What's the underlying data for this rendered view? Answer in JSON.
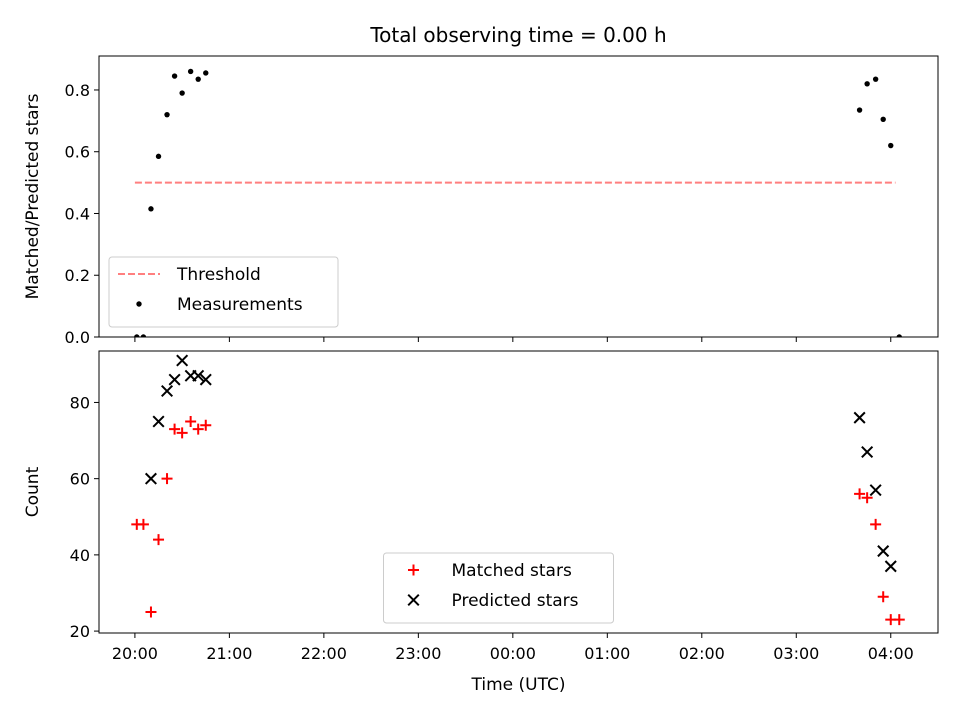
{
  "chart_data": [
    {
      "type": "scatter",
      "title": "Total observing time = 0.00 h",
      "ylabel": "Matched/Predicted stars",
      "xlabel": "",
      "ylim": [
        0,
        0.91
      ],
      "xlim_hours": [
        19.62,
        28.5
      ],
      "yticks": [
        0.0,
        0.2,
        0.4,
        0.6,
        0.8
      ],
      "ytick_labels": [
        "0.0",
        "0.2",
        "0.4",
        "0.6",
        "0.8"
      ],
      "legend_position": "lower-left",
      "series": [
        {
          "name": "Threshold",
          "kind": "dashed-line",
          "color": "#ff7f7f",
          "x_hours": [
            20.0,
            28.05
          ],
          "y": [
            0.5,
            0.5
          ]
        },
        {
          "name": "Measurements",
          "kind": "dot",
          "color": "#000000",
          "x_hours": [
            20.02,
            20.09,
            20.17,
            20.25,
            20.34,
            20.42,
            20.5,
            20.59,
            20.67,
            20.75,
            27.67,
            27.75,
            27.84,
            27.92,
            28.0,
            28.09
          ],
          "y": [
            0.0,
            0.0,
            0.415,
            0.585,
            0.72,
            0.845,
            0.79,
            0.86,
            0.835,
            0.855,
            0.735,
            0.82,
            0.835,
            0.705,
            0.62,
            0.0
          ]
        }
      ]
    },
    {
      "type": "scatter",
      "title": "",
      "ylabel": "Count",
      "xlabel": "Time (UTC)",
      "ylim": [
        19.5,
        93.5
      ],
      "xlim_hours": [
        19.62,
        28.5
      ],
      "yticks": [
        20,
        40,
        60,
        80
      ],
      "ytick_labels": [
        "20",
        "40",
        "60",
        "80"
      ],
      "xticks_hours": [
        20,
        21,
        22,
        23,
        24,
        25,
        26,
        27,
        28
      ],
      "xtick_labels": [
        "20:00",
        "21:00",
        "22:00",
        "23:00",
        "00:00",
        "01:00",
        "02:00",
        "03:00",
        "04:00"
      ],
      "legend_position": "lower-center",
      "series": [
        {
          "name": "Matched stars",
          "kind": "plus",
          "color": "#ff0000",
          "x_hours": [
            20.02,
            20.09,
            20.17,
            20.25,
            20.34,
            20.42,
            20.5,
            20.59,
            20.67,
            20.75,
            27.67,
            27.75,
            27.84,
            27.92,
            28.0,
            28.09
          ],
          "y": [
            48,
            48,
            25,
            44,
            60,
            73,
            72,
            75,
            73,
            74,
            56,
            55,
            48,
            29,
            23,
            23
          ]
        },
        {
          "name": "Predicted stars",
          "kind": "x",
          "color": "#000000",
          "x_hours": [
            20.17,
            20.25,
            20.34,
            20.42,
            20.5,
            20.59,
            20.67,
            20.75,
            27.67,
            27.75,
            27.84,
            27.92,
            28.0
          ],
          "y": [
            60,
            75,
            83,
            86,
            91,
            87,
            87,
            86,
            76,
            67,
            57,
            41,
            37
          ]
        }
      ]
    }
  ]
}
